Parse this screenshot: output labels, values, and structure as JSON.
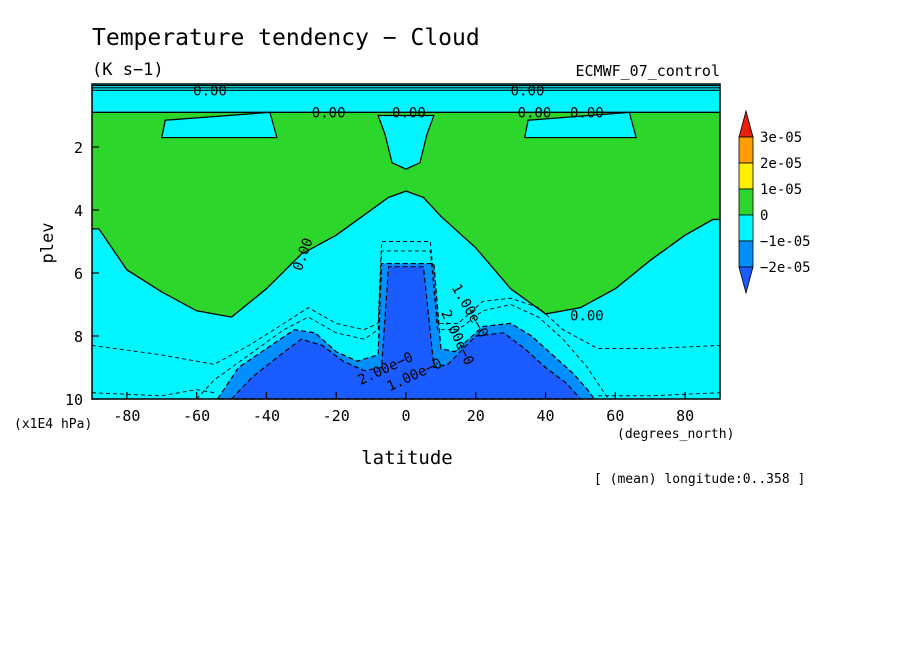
{
  "chart_data": {
    "type": "heatmap",
    "title": "Temperature tendency − Cloud",
    "units": "(K s−1)",
    "dataset": "ECMWF_07_control",
    "ylabel": "plev",
    "ylabel_units": "(x1E4 hPa)",
    "xlabel": "latitude",
    "xlabel_units": "(degrees_north)",
    "footnote": "[ (mean) longitude:0..358 ]",
    "xlim": [
      -90,
      90
    ],
    "ylim": [
      0,
      10
    ],
    "y_inverted": true,
    "x_ticks": [
      -80,
      -60,
      -40,
      -20,
      0,
      20,
      40,
      60,
      80
    ],
    "y_ticks": [
      2,
      4,
      6,
      8,
      10
    ],
    "legend": {
      "placement": "right",
      "labels": [
        "3e-05",
        "2e-05",
        "1e-05",
        "0",
        "−1e-05",
        "−2e-05"
      ],
      "colors": [
        "#e8200c",
        "#ff9d00",
        "#ffef00",
        "#2dd62a",
        "#00f5ff",
        "#008fff",
        "#1a5cff"
      ]
    },
    "contour_labels": [
      "0.00",
      "0.00",
      "0.00",
      "0.00",
      "0.00",
      "0.00",
      "0.00",
      "0.00",
      "1.00e−0",
      "2.00e−0",
      "2.00e−0",
      "1.00e−0"
    ],
    "regions": [
      {
        "level": "0 to 1e-05",
        "color": "#2dd62a",
        "boundary_lat": [
          -90,
          -88,
          -80,
          -70,
          -60,
          -50,
          -40,
          -30,
          -20,
          -10,
          -5,
          0,
          5,
          10,
          20,
          30,
          40,
          50,
          60,
          70,
          80,
          88,
          90
        ],
        "boundary_plev": [
          4.6,
          4.6,
          5.9,
          6.6,
          7.2,
          7.4,
          6.5,
          5.4,
          4.8,
          4.0,
          3.6,
          3.4,
          3.6,
          4.2,
          5.2,
          6.5,
          7.3,
          7.1,
          6.5,
          5.6,
          4.8,
          4.3,
          4.3
        ]
      },
      {
        "level": "-1e-05 to 0",
        "color": "#00f5ff",
        "note": "cyan pocket near equator",
        "lat_range": [
          -8,
          8
        ],
        "plev_top": 1.0,
        "plev_bottom": 2.7
      },
      {
        "level": "-1e-05 to 0",
        "color": "#00f5ff",
        "note": "cyan pockets",
        "lat_range": [
          -70,
          -37
        ],
        "plev_range": [
          0.9,
          1.7
        ]
      },
      {
        "level": "-1e-05 to 0",
        "color": "#00f5ff",
        "note": "cyan pockets",
        "lat_range": [
          34,
          66
        ],
        "plev_range": [
          0.9,
          1.7
        ]
      },
      {
        "level": "-2e-05 to -1e-05",
        "color": "#008fff",
        "lat": [
          -54,
          -48,
          -40,
          -32,
          -26,
          -20,
          -14,
          -8,
          -7,
          8,
          10,
          14,
          22,
          30,
          36,
          42,
          48,
          52,
          54
        ],
        "plev_top": [
          10,
          9.0,
          8.4,
          7.8,
          7.9,
          8.5,
          8.8,
          8.6,
          5.7,
          5.7,
          8.4,
          8.5,
          7.7,
          7.6,
          8.0,
          8.6,
          9.2,
          9.7,
          10
        ]
      },
      {
        "level": "< -2e-05",
        "color": "#1a5cff",
        "lat": [
          -50,
          -44,
          -36,
          -30,
          -24,
          -18,
          -12,
          -7,
          -5,
          5,
          8,
          12,
          20,
          28,
          34,
          40,
          46,
          50
        ],
        "plev_top": [
          10,
          9.3,
          8.6,
          8.1,
          8.3,
          8.8,
          9.1,
          9.0,
          5.8,
          5.8,
          9.0,
          8.9,
          8.0,
          7.9,
          8.4,
          9.0,
          9.5,
          10
        ]
      }
    ]
  }
}
